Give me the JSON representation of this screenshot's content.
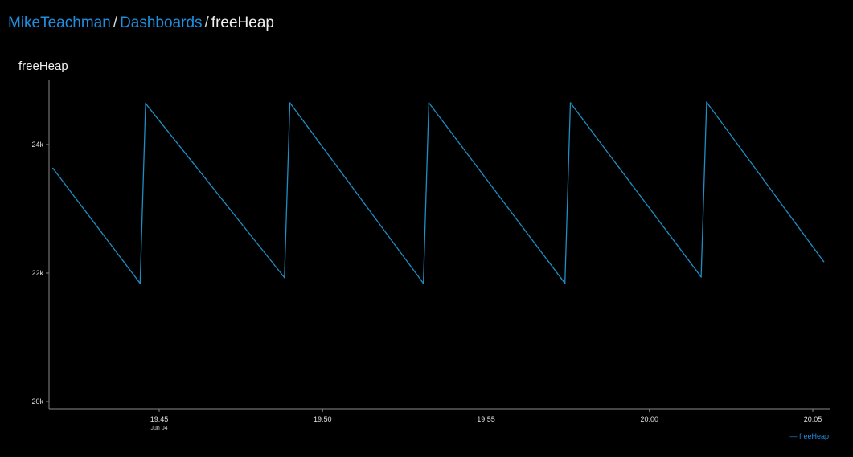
{
  "breadcrumb": {
    "user": "MikeTeachman",
    "section": "Dashboards",
    "current": "freeHeap",
    "separator": "/"
  },
  "panel": {
    "title": "freeHeap"
  },
  "colors": {
    "link": "#1e8fe0",
    "series": "#1d8fc4",
    "axis": "#8a8a8a",
    "background": "#000000"
  },
  "chart_data": {
    "type": "line",
    "title": "freeHeap",
    "x_range": [
      "19:41:30",
      "20:05:30"
    ],
    "y_range": [
      20000,
      25000
    ],
    "y_ticks": [
      {
        "value": 20000,
        "label": "20k"
      },
      {
        "value": 22000,
        "label": "22k"
      },
      {
        "value": 24000,
        "label": "24k"
      }
    ],
    "x_ticks": [
      {
        "time": "19:45",
        "label": "19:45",
        "sublabel": "Jun 04"
      },
      {
        "time": "19:50",
        "label": "19:50",
        "sublabel": ""
      },
      {
        "time": "19:55",
        "label": "19:55",
        "sublabel": ""
      },
      {
        "time": "20:00",
        "label": "20:00",
        "sublabel": ""
      },
      {
        "time": "20:05",
        "label": "20:05",
        "sublabel": ""
      }
    ],
    "grid": false,
    "legend_position": "bottom-right",
    "series": [
      {
        "name": "freeHeap",
        "points": [
          {
            "t": "19:41:45",
            "v": 23630
          },
          {
            "t": "19:44:25",
            "v": 21840
          },
          {
            "t": "19:44:35",
            "v": 24640
          },
          {
            "t": "19:48:50",
            "v": 21930
          },
          {
            "t": "19:49:00",
            "v": 24650
          },
          {
            "t": "19:53:05",
            "v": 21840
          },
          {
            "t": "19:53:15",
            "v": 24650
          },
          {
            "t": "19:57:25",
            "v": 21840
          },
          {
            "t": "19:57:35",
            "v": 24650
          },
          {
            "t": "20:01:35",
            "v": 21940
          },
          {
            "t": "20:01:45",
            "v": 24660
          },
          {
            "t": "20:05:20",
            "v": 22180
          }
        ]
      }
    ]
  }
}
